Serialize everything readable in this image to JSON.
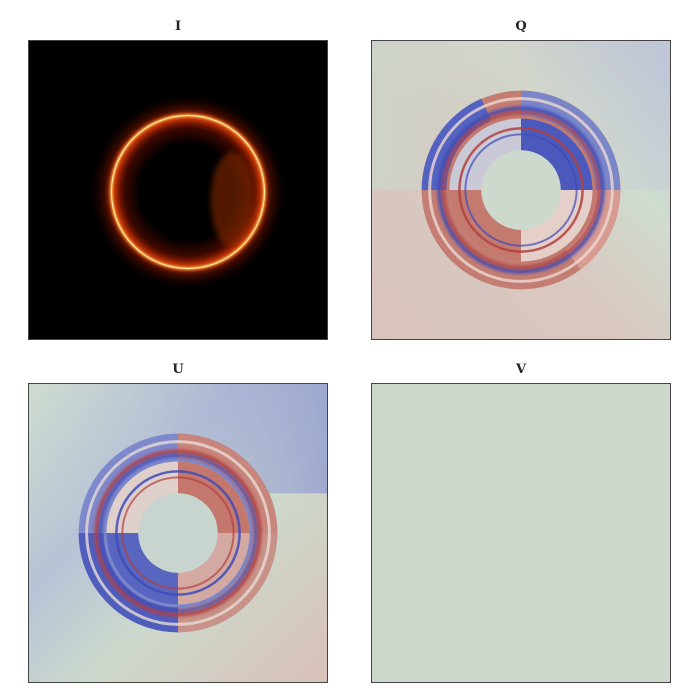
{
  "panels": [
    {
      "title": "I",
      "colormap": "afmhot"
    },
    {
      "title": "Q",
      "colormap": "coolwarm"
    },
    {
      "title": "U",
      "colormap": "coolwarm"
    },
    {
      "title": "V",
      "colormap": "coolwarm"
    }
  ],
  "colors": {
    "background": "#ffffff",
    "hot_ring": "#ffb43c",
    "hot_glow": "#c8320a",
    "neutral": "#ccd9cc",
    "warm": "#b2413f",
    "cool": "#3e4bb8"
  }
}
